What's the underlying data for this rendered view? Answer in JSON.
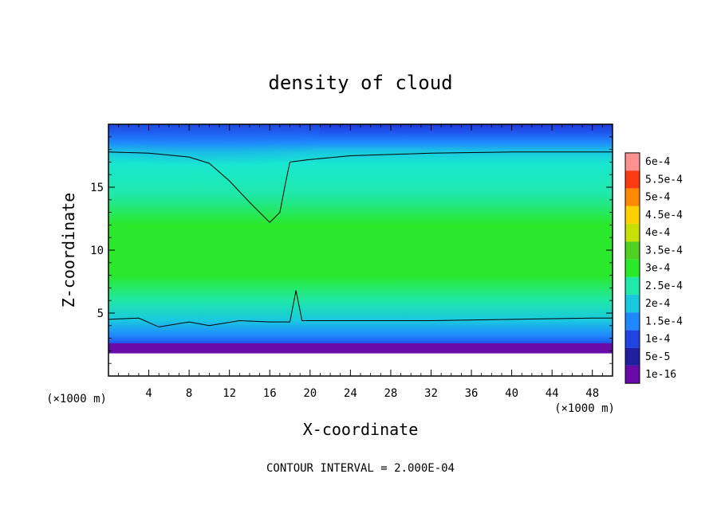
{
  "chart_data": {
    "type": "heatmap",
    "title": "density of cloud",
    "xlabel": "X-coordinate",
    "ylabel": "Z-coordinate",
    "x_unit_label": "(×1000 m)",
    "y_unit_label": "(×1000 m)",
    "xlim": [
      0,
      50
    ],
    "ylim": [
      0,
      20
    ],
    "x_ticks": [
      "4",
      "8",
      "12",
      "16",
      "20",
      "24",
      "28",
      "32",
      "36",
      "40",
      "44",
      "48"
    ],
    "x_tick_values": [
      4,
      8,
      12,
      16,
      20,
      24,
      28,
      32,
      36,
      40,
      44,
      48
    ],
    "y_ticks": [
      "5",
      "10",
      "15"
    ],
    "y_tick_values": [
      5,
      10,
      15
    ],
    "contour_interval_text": "CONTOUR INTERVAL = 2.000E-04",
    "contour_level": 0.0002,
    "colorbar": {
      "position": "right",
      "levels": [
        {
          "label": "1e-16",
          "value": 1e-16,
          "color": "#6a0aa8"
        },
        {
          "label": "5e-5",
          "value": 5e-05,
          "color": "#1f1fa0"
        },
        {
          "label": "1e-4",
          "value": 0.0001,
          "color": "#1f44e0"
        },
        {
          "label": "1.5e-4",
          "value": 0.00015,
          "color": "#1f88ff"
        },
        {
          "label": "2e-4",
          "value": 0.0002,
          "color": "#19c8e0"
        },
        {
          "label": "2.5e-4",
          "value": 0.00025,
          "color": "#1fe8a8"
        },
        {
          "label": "3e-4",
          "value": 0.0003,
          "color": "#2ae82a"
        },
        {
          "label": "3.5e-4",
          "value": 0.00035,
          "color": "#50d020"
        },
        {
          "label": "4e-4",
          "value": 0.0004,
          "color": "#c8e000"
        },
        {
          "label": "4.5e-4",
          "value": 0.00045,
          "color": "#ffd000"
        },
        {
          "label": "5e-4",
          "value": 0.0005,
          "color": "#ff8a00"
        },
        {
          "label": "5.5e-4",
          "value": 0.00055,
          "color": "#ff3a10"
        },
        {
          "label": "6e-4",
          "value": 0.0006,
          "color": "#ff9090"
        }
      ]
    },
    "contour_cloud_top_z": [
      [
        0,
        17.8
      ],
      [
        4,
        17.7
      ],
      [
        8,
        17.4
      ],
      [
        10,
        16.9
      ],
      [
        12,
        15.5
      ],
      [
        14,
        13.8
      ],
      [
        16,
        12.2
      ],
      [
        17,
        13
      ],
      [
        17.6,
        15.5
      ],
      [
        18,
        17.0
      ],
      [
        20,
        17.2
      ],
      [
        24,
        17.5
      ],
      [
        32,
        17.7
      ],
      [
        40,
        17.8
      ],
      [
        50,
        17.8
      ]
    ],
    "contour_cloud_base_z": [
      [
        0,
        4.5
      ],
      [
        3,
        4.6
      ],
      [
        5,
        3.9
      ],
      [
        8,
        4.3
      ],
      [
        10,
        4.0
      ],
      [
        13,
        4.4
      ],
      [
        16,
        4.3
      ],
      [
        18,
        4.3
      ],
      [
        18.6,
        6.8
      ],
      [
        19.2,
        4.4
      ],
      [
        24,
        4.4
      ],
      [
        32,
        4.4
      ],
      [
        40,
        4.5
      ],
      [
        48,
        4.6
      ],
      [
        50,
        4.6
      ]
    ],
    "clear_below_z": 1.8,
    "grid": false
  }
}
